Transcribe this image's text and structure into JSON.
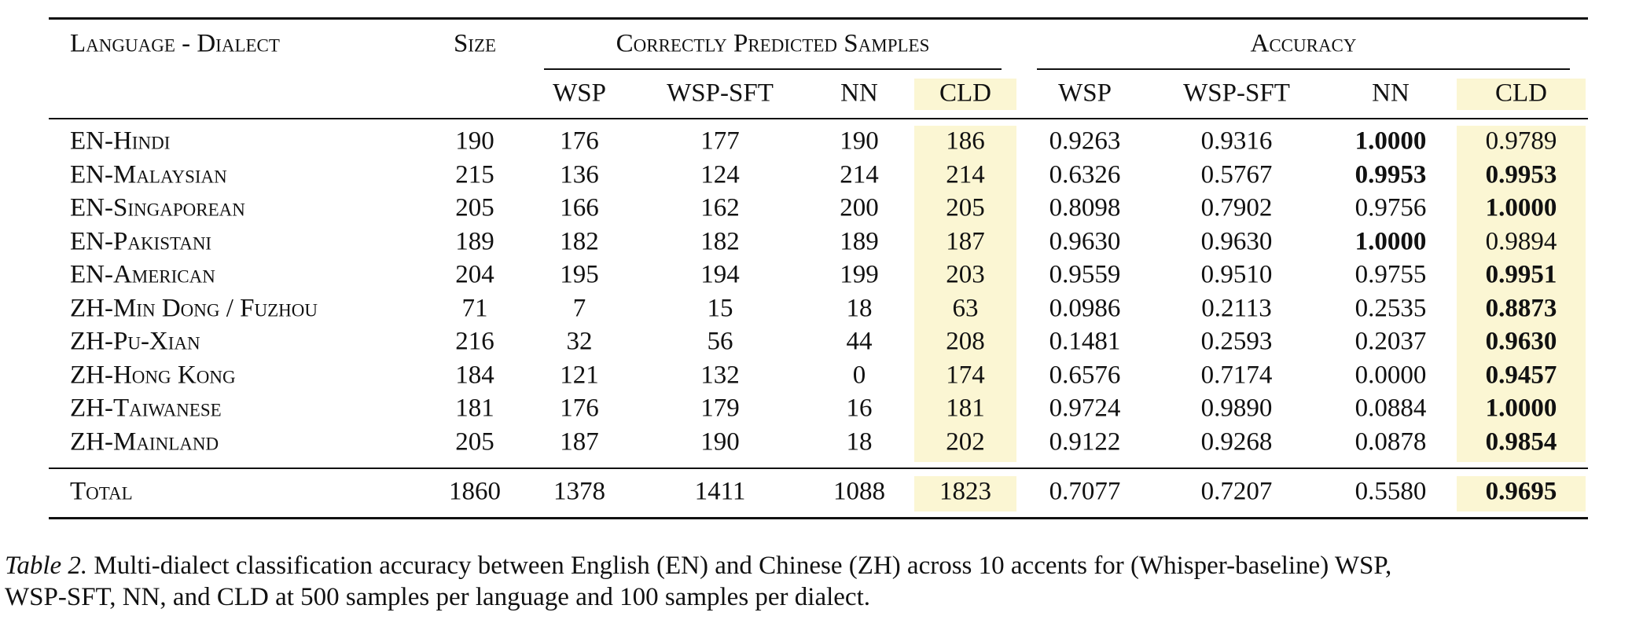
{
  "table": {
    "group_headers": [
      "Language - Dialect",
      "Size",
      "Correctly Predicted Samples",
      "Accuracy"
    ],
    "sub_headers": [
      "WSP",
      "WSP-SFT",
      "NN",
      "CLD",
      "WSP",
      "WSP-SFT",
      "NN",
      "CLD"
    ],
    "rows": [
      [
        "EN-Hindi",
        "190",
        "176",
        "177",
        "190",
        "186",
        "0.9263",
        "0.9316",
        "1.0000",
        "0.9789"
      ],
      [
        "EN-Malaysian",
        "215",
        "136",
        "124",
        "214",
        "214",
        "0.6326",
        "0.5767",
        "0.9953",
        "0.9953"
      ],
      [
        "EN-Singaporean",
        "205",
        "166",
        "162",
        "200",
        "205",
        "0.8098",
        "0.7902",
        "0.9756",
        "1.0000"
      ],
      [
        "EN-Pakistani",
        "189",
        "182",
        "182",
        "189",
        "187",
        "0.9630",
        "0.9630",
        "1.0000",
        "0.9894"
      ],
      [
        "EN-American",
        "204",
        "195",
        "194",
        "199",
        "203",
        "0.9559",
        "0.9510",
        "0.9755",
        "0.9951"
      ],
      [
        "ZH-Min Dong / Fuzhou",
        "71",
        "7",
        "15",
        "18",
        "63",
        "0.0986",
        "0.2113",
        "0.2535",
        "0.8873"
      ],
      [
        "ZH-Pu-Xian",
        "216",
        "32",
        "56",
        "44",
        "208",
        "0.1481",
        "0.2593",
        "0.2037",
        "0.9630"
      ],
      [
        "ZH-Hong Kong",
        "184",
        "121",
        "132",
        "0",
        "174",
        "0.6576",
        "0.7174",
        "0.0000",
        "0.9457"
      ],
      [
        "ZH-Taiwanese",
        "181",
        "176",
        "179",
        "16",
        "181",
        "0.9724",
        "0.9890",
        "0.0884",
        "1.0000"
      ],
      [
        "ZH-Mainland",
        "205",
        "187",
        "190",
        "18",
        "202",
        "0.9122",
        "0.9268",
        "0.0878",
        "0.9854"
      ]
    ],
    "total": [
      "Total",
      "1860",
      "1378",
      "1411",
      "1088",
      "1823",
      "0.7077",
      "0.7207",
      "0.5580",
      "0.9695"
    ]
  },
  "caption": {
    "label": "Table 2.",
    "text": "Multi-dialect classification accuracy between English (EN) and Chinese (ZH) across 10 accents for (Whisper-baseline) WSP, WSP-SFT, NN, and CLD at 500 samples per language and 100 samples per dialect."
  }
}
